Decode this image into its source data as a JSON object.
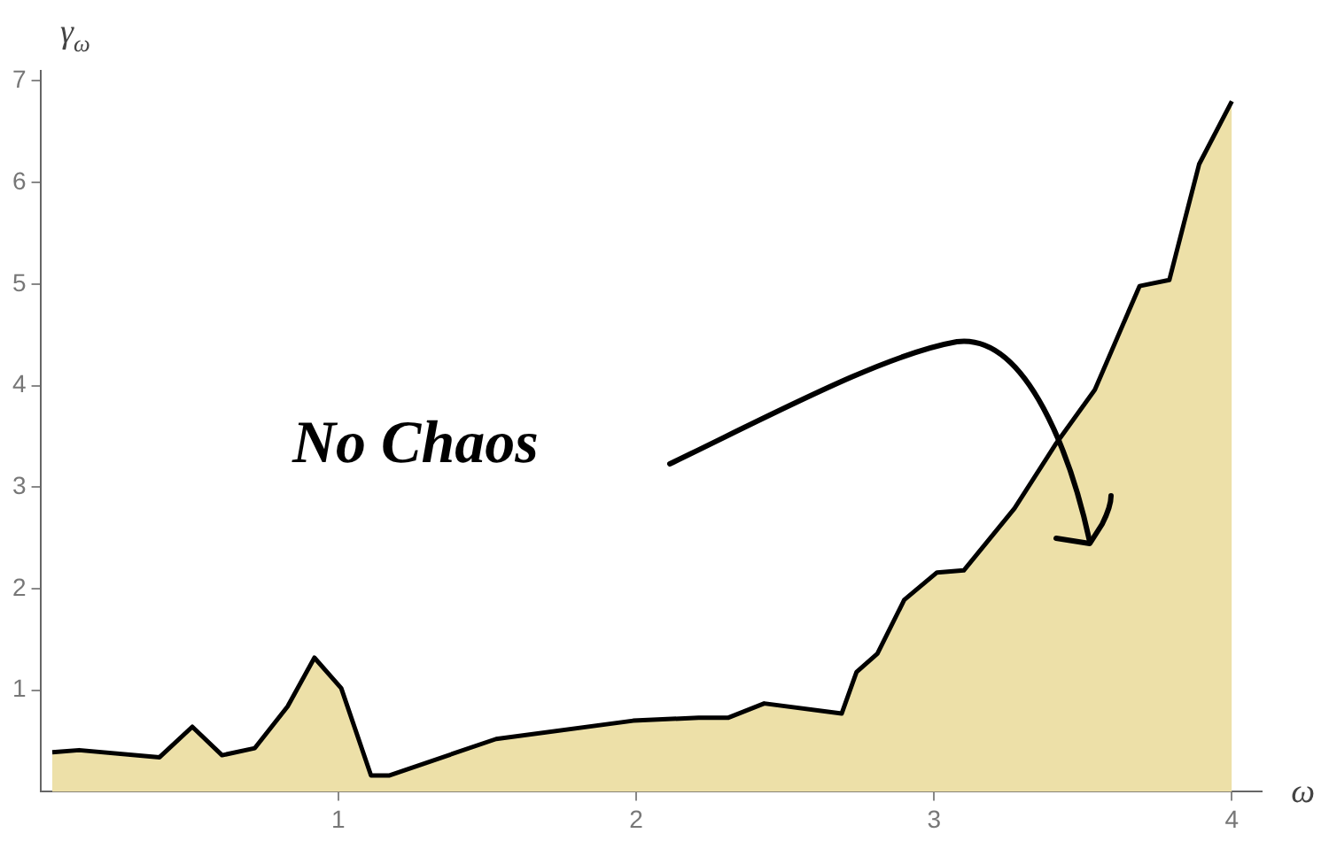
{
  "chart_data": {
    "type": "area",
    "xlabel": "ω",
    "ylabel": "γ$_{ω}$",
    "annotations": [
      "No Chaos"
    ],
    "xlim": [
      0,
      4.1
    ],
    "ylim": [
      0,
      7.1
    ],
    "xticks": [
      1,
      2,
      3,
      4
    ],
    "yticks": [
      1,
      2,
      3,
      4,
      5,
      6,
      7
    ],
    "grid": false,
    "legend": false,
    "marker": "none",
    "x": [
      0.04,
      0.13,
      0.4,
      0.51,
      0.61,
      0.72,
      0.83,
      0.92,
      1.01,
      1.11,
      1.17,
      1.53,
      1.99,
      2.21,
      2.31,
      2.43,
      2.69,
      2.74,
      2.81,
      2.9,
      3.01,
      3.1,
      3.27,
      3.41,
      3.54,
      3.69,
      3.79,
      3.89,
      4.0
    ],
    "series": [
      {
        "color": "#ede0a8",
        "values": [
          0.39,
          0.41,
          0.34,
          0.64,
          0.36,
          0.43,
          0.84,
          1.32,
          1.02,
          0.16,
          0.16,
          0.52,
          0.7,
          0.73,
          0.73,
          0.87,
          0.77,
          1.18,
          1.36,
          1.89,
          2.16,
          2.18,
          2.79,
          3.43,
          3.96,
          4.98,
          5.04,
          6.18,
          6.8
        ]
      }
    ]
  }
}
